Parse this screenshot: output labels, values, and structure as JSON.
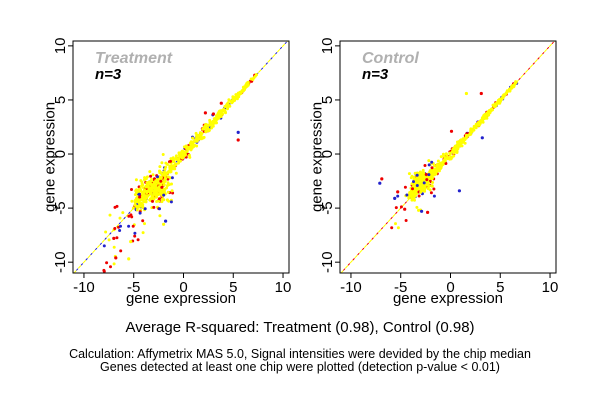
{
  "figure": {
    "background": "#ffffff"
  },
  "colors": {
    "yellow": "#ffff00",
    "red": "#ee0000",
    "blue": "#2222cc",
    "frame": "#000000",
    "text": "#000000",
    "title_gray": "#b0b0b0"
  },
  "captions": {
    "r_squared": "Average R-squared: Treatment (0.98), Control (0.98)",
    "calc_line1": "Calculation: Affymetrix MAS 5.0, Signal intensities were devided by the chip median",
    "calc_line2": "Genes detected at least one chip were plotted (detection p-value < 0.01)"
  },
  "chart_data": [
    {
      "type": "scatter",
      "title": "Treatment",
      "annotation": "n=3",
      "xlabel": "gene expression",
      "ylabel": "gene expression",
      "xlim": [
        -11.1,
        10.6
      ],
      "ylim": [
        -11.0,
        10.45
      ],
      "xticks": [
        -10,
        -5,
        0,
        5,
        10
      ],
      "yticks": [
        -10,
        -5,
        0,
        5,
        10
      ],
      "grid": false,
      "legend": "none",
      "r_squared": 0.98,
      "point_colors": [
        "#ffff00",
        "#ee0000",
        "#2222cc"
      ],
      "identity_line": {
        "style": "dashed",
        "base_color": "#ffff00",
        "overlay_color": "#2222cc"
      },
      "cloud": {
        "seed": 13,
        "segments": [
          {
            "type": "diag",
            "t0": -4.6,
            "t1": 7.35,
            "bias": 1.55,
            "w0": 0.85,
            "w1": 0.1,
            "parts": [
              [
                "blue",
                34
              ],
              [
                "red",
                62
              ],
              [
                "yellow",
                420
              ]
            ]
          },
          {
            "type": "blob",
            "cx": -3.0,
            "cy": -3.2,
            "sx": 1.5,
            "sy": 1.3,
            "parts": [
              [
                "blue",
                8
              ],
              [
                "red",
                40
              ],
              [
                "yellow",
                150
              ]
            ]
          },
          {
            "type": "spray",
            "x0": -8.0,
            "x1": -0.8,
            "dy0": -3.4,
            "dy1": 2.0,
            "parts": [
              [
                "yellow",
                30
              ],
              [
                "red",
                28
              ],
              [
                "blue",
                13
              ]
            ]
          }
        ]
      },
      "outliers": [
        [
          5.5,
          2.0,
          "blue"
        ],
        [
          5.5,
          1.3,
          "red"
        ],
        [
          3.8,
          4.7,
          "red"
        ],
        [
          2.2,
          3.8,
          "red"
        ],
        [
          3.0,
          3.7,
          "red"
        ],
        [
          -7.0,
          -7.8,
          "red"
        ],
        [
          -5.3,
          -8.1,
          "yellow"
        ],
        [
          -6.8,
          -9.6,
          "red"
        ],
        [
          -5.5,
          -9.7,
          "yellow"
        ],
        [
          -2.0,
          -6.5,
          "yellow"
        ],
        [
          -1.8,
          -6.2,
          "blue"
        ]
      ]
    },
    {
      "type": "scatter",
      "title": "Control",
      "annotation": "n=3",
      "xlabel": "gene expression",
      "ylabel": "gene expression",
      "xlim": [
        -11.1,
        10.6
      ],
      "ylim": [
        -11.0,
        10.45
      ],
      "xticks": [
        -10,
        -5,
        0,
        5,
        10
      ],
      "yticks": [
        -10,
        -5,
        0,
        5,
        10
      ],
      "grid": false,
      "legend": "none",
      "r_squared": 0.98,
      "point_colors": [
        "#ffff00",
        "#ee0000",
        "#2222cc"
      ],
      "identity_line": {
        "style": "dashed",
        "base_color": "#ffff00",
        "overlay_color": "#ee0000"
      },
      "cloud": {
        "seed": 29,
        "segments": [
          {
            "type": "diag",
            "t0": -3.9,
            "t1": 6.6,
            "bias": 1.5,
            "w0": 0.55,
            "w1": 0.1,
            "parts": [
              [
                "blue",
                30
              ],
              [
                "red",
                60
              ],
              [
                "yellow",
                430
              ]
            ]
          },
          {
            "type": "blob",
            "cx": -2.9,
            "cy": -2.6,
            "sx": 1.05,
            "sy": 0.95,
            "parts": [
              [
                "blue",
                10
              ],
              [
                "red",
                30
              ],
              [
                "yellow",
                160
              ]
            ]
          },
          {
            "type": "spray",
            "x0": -6.0,
            "x1": -1.6,
            "dy0": -2.3,
            "dy1": 1.6,
            "parts": [
              [
                "yellow",
                10
              ],
              [
                "red",
                12
              ],
              [
                "blue",
                10
              ]
            ]
          }
        ]
      },
      "outliers": [
        [
          1.6,
          5.6,
          "yellow"
        ],
        [
          3.1,
          5.6,
          "red"
        ],
        [
          0.1,
          2.1,
          "red"
        ],
        [
          3.2,
          1.5,
          "blue"
        ],
        [
          -7.1,
          -2.7,
          "blue"
        ],
        [
          -6.9,
          -2.3,
          "red"
        ],
        [
          0.9,
          -3.4,
          "blue"
        ],
        [
          -2.3,
          -5.4,
          "red"
        ],
        [
          -3.2,
          -5.2,
          "yellow"
        ],
        [
          -2.9,
          -5.3,
          "blue"
        ],
        [
          -4.6,
          -5.1,
          "red"
        ],
        [
          -5.6,
          -4.1,
          "blue"
        ],
        [
          -5.3,
          -3.5,
          "red"
        ]
      ]
    }
  ]
}
